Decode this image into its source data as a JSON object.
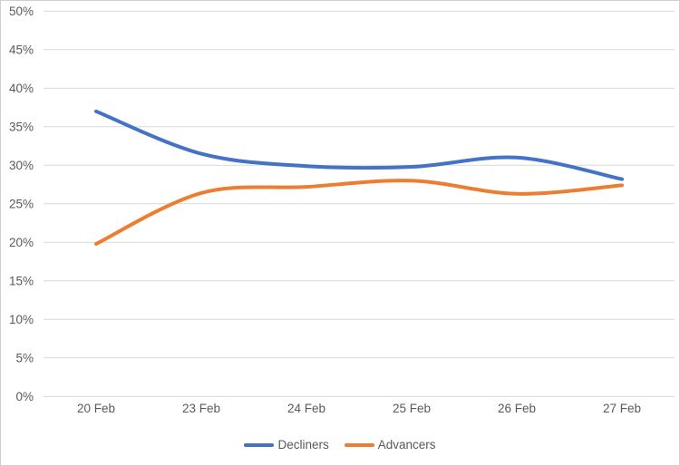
{
  "window": {
    "background_color": "#FFFFFF",
    "border_color": "#CFCFCF"
  },
  "chart_data": {
    "type": "line",
    "title": "",
    "xlabel": "",
    "ylabel": "",
    "categories": [
      "20 Feb",
      "23 Feb",
      "24 Feb",
      "25 Feb",
      "26 Feb",
      "27 Feb"
    ],
    "series": [
      {
        "name": "Decliners",
        "color": "#4472C4",
        "values": [
          37.0,
          31.5,
          29.9,
          29.8,
          31.0,
          28.2
        ]
      },
      {
        "name": "Advancers",
        "color": "#ED7D31",
        "values": [
          19.8,
          26.4,
          27.2,
          28.0,
          26.3,
          27.4
        ]
      }
    ],
    "ylim": [
      0,
      50
    ],
    "ytick_step": 5,
    "ytick_labels": [
      "0%",
      "5%",
      "10%",
      "15%",
      "20%",
      "25%",
      "30%",
      "35%",
      "40%",
      "45%",
      "50%"
    ],
    "grid": true,
    "line_style": "smooth",
    "line_width": 4,
    "legend_position": "bottom",
    "colors": {
      "gridline": "#D9D9D9",
      "tick_label": "#595959",
      "legend_label": "#595959"
    }
  }
}
